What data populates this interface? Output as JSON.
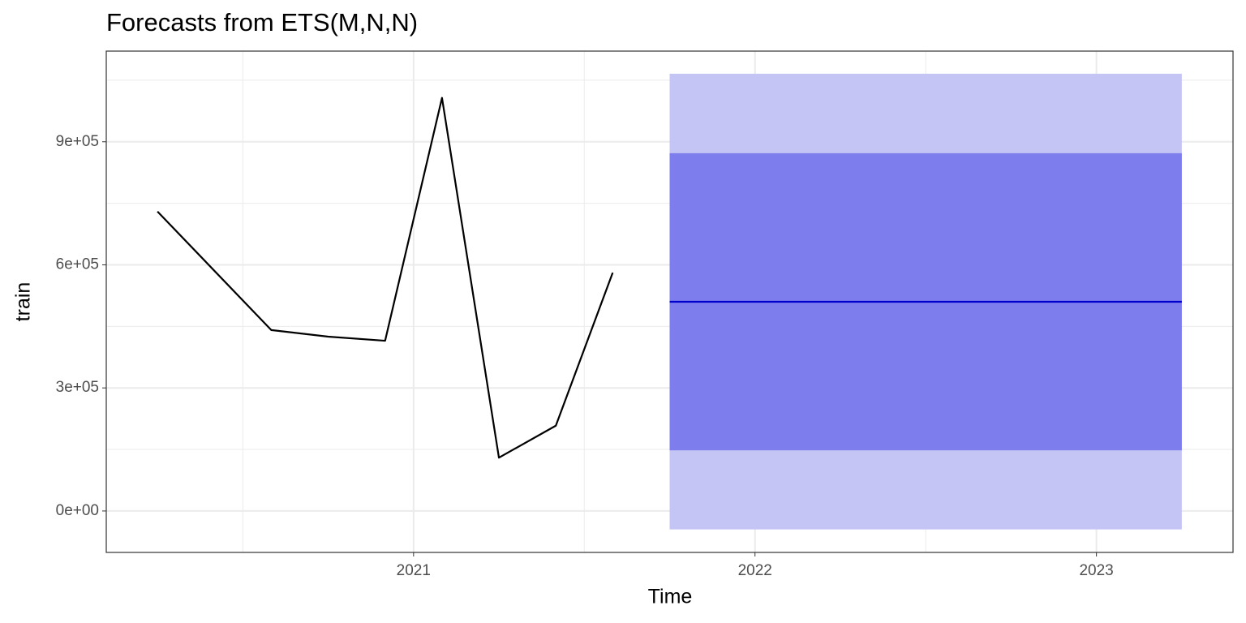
{
  "chart_data": {
    "type": "forecast",
    "title": "Forecasts from ETS(M,N,N)",
    "x_label": "Time",
    "y_label": "train",
    "observed": {
      "color": "#000000",
      "x": [
        2020.25,
        2020.5833,
        2020.75,
        2020.9167,
        2021.0833,
        2021.25,
        2021.4167,
        2021.5833
      ],
      "values": [
        730000,
        441000,
        425000,
        415000,
        1007000,
        130000,
        208000,
        581000
      ]
    },
    "forecast": {
      "mean_color": "#0000cc",
      "band80_color": "#7d7dee",
      "band95_color": "#c4c4f5",
      "x": [
        2021.75,
        2021.9167,
        2022.0833,
        2022.25,
        2022.4167,
        2022.5833,
        2022.75,
        2022.9167,
        2023.0833,
        2023.25
      ],
      "mean": [
        510000,
        510000,
        510000,
        510000,
        510000,
        510000,
        510000,
        510000,
        510000,
        510000
      ],
      "lo80": [
        148000,
        148000,
        148000,
        148000,
        148000,
        148000,
        148000,
        148000,
        148000,
        148000
      ],
      "hi80": [
        872000,
        872000,
        872000,
        872000,
        872000,
        872000,
        872000,
        872000,
        872000,
        872000
      ],
      "lo95": [
        -45000,
        -45000,
        -45000,
        -45000,
        -45000,
        -45000,
        -45000,
        -45000,
        -45000,
        -45000
      ],
      "hi95": [
        1066000,
        1066000,
        1066000,
        1066000,
        1066000,
        1066000,
        1066000,
        1066000,
        1066000,
        1066000
      ]
    },
    "xlim": [
      2020.1,
      2023.4
    ],
    "xticks": [
      2021,
      2022,
      2023
    ],
    "xminor": [
      2020.5,
      2021.5,
      2022.5
    ],
    "ylim": [
      -101000,
      1121000
    ],
    "yticks": [
      {
        "value": 0,
        "label": "0e+00"
      },
      {
        "value": 300000,
        "label": "3e+05"
      },
      {
        "value": 600000,
        "label": "6e+05"
      },
      {
        "value": 900000,
        "label": "9e+05"
      }
    ],
    "yminor": [
      150000,
      450000,
      750000,
      1050000
    ],
    "grid": true
  }
}
